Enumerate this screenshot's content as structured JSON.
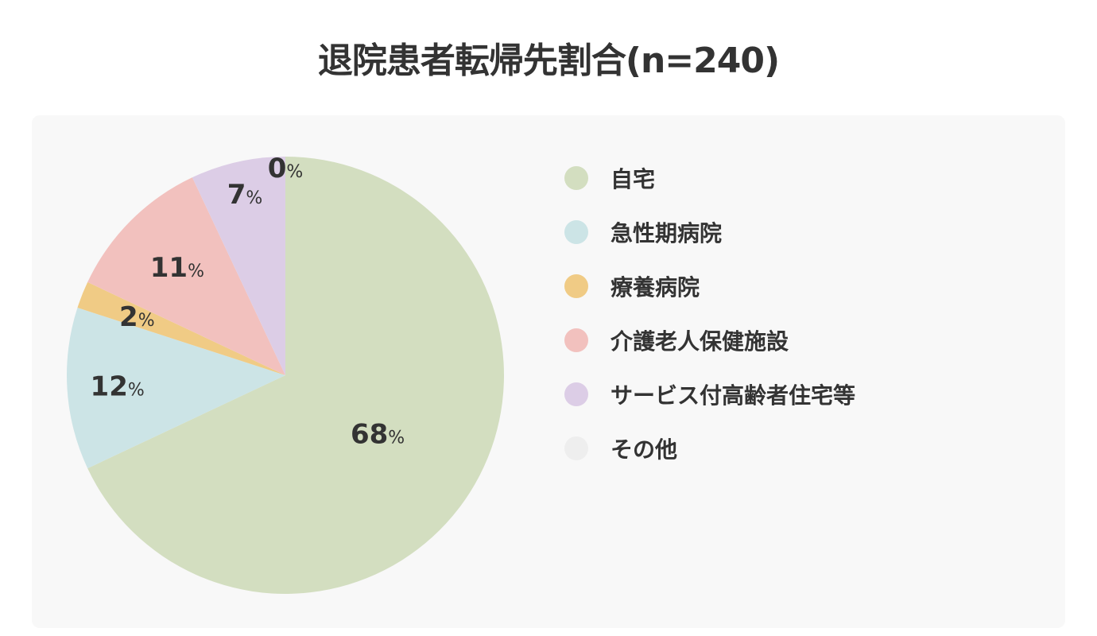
{
  "title": "退院患者転帰先割合(n=240)",
  "chart_data": {
    "type": "pie",
    "title": "退院患者転帰先割合(n=240)",
    "categories": [
      "自宅",
      "急性期病院",
      "療養病院",
      "介護老人保健施設",
      "サービス付高齢者住宅等",
      "その他"
    ],
    "values": [
      68,
      12,
      2,
      11,
      7,
      0
    ],
    "value_labels": [
      "68",
      "12",
      "2",
      "11",
      "7",
      "0"
    ],
    "unit": "%",
    "colors": [
      "#d3dec0",
      "#cce4e6",
      "#f0cb85",
      "#f2c1be",
      "#dccde6",
      "#eeeeee"
    ],
    "start": "12 o'clock",
    "direction": "clockwise",
    "legend_position": "right"
  }
}
